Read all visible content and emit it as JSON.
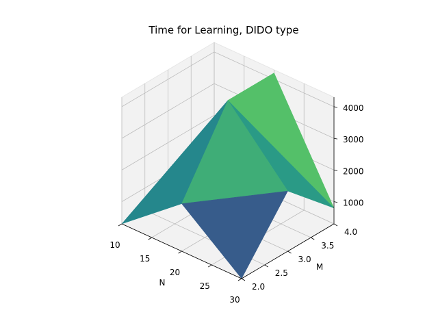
{
  "chart_data": {
    "type": "surface",
    "title": "Time for Learning, DIDO type",
    "xlabel": "N",
    "ylabel": "M",
    "zlabel": "",
    "x_ticks": [
      "10",
      "15",
      "20",
      "25",
      "30"
    ],
    "y_ticks": [
      "2.0",
      "2.5",
      "3.0",
      "3.5",
      "4.0"
    ],
    "z_ticks": [
      "1000",
      "2000",
      "3000",
      "4000"
    ],
    "xlim": [
      10,
      30
    ],
    "ylim": [
      2,
      4
    ],
    "zlim": [
      300,
      4300
    ],
    "grid": true,
    "colormap": "viridis",
    "x": [
      10,
      20,
      30
    ],
    "y": [
      2,
      3,
      4
    ],
    "z": [
      [
        300,
        1800,
        300
      ],
      [
        600,
        4200,
        2200
      ],
      [
        300,
        4200,
        800
      ]
    ],
    "colors": {
      "pane": "#f2f2f2",
      "pane_edge": "#e6e6e6",
      "grid": "#bdbdbd",
      "surface": [
        "#440154",
        "#3b528b",
        "#21918c",
        "#5ec962",
        "#fde725"
      ]
    }
  }
}
